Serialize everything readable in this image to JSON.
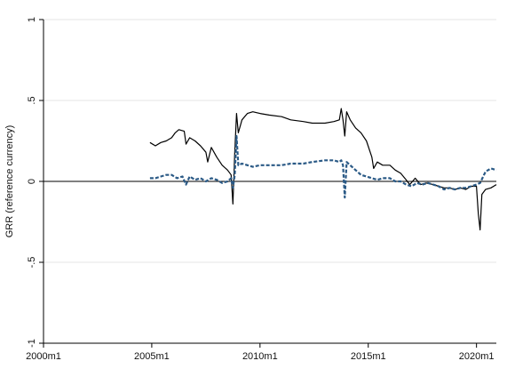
{
  "chart_data": {
    "type": "line",
    "title": "",
    "xlabel": "",
    "ylabel": "GRR (reference currency)",
    "xlim": [
      "2000m1",
      "2020m12"
    ],
    "ylim": [
      -1,
      1
    ],
    "grid": true,
    "legend": "none",
    "x_ticks": [
      "2000m1",
      "2005m1",
      "2010m1",
      "2015m1",
      "2020m1"
    ],
    "y_ticks": [
      {
        "value": 1,
        "label": "1"
      },
      {
        "value": 0.5,
        "label": ".5"
      },
      {
        "value": 0,
        "label": "0"
      },
      {
        "value": -0.5,
        "label": "-.5"
      },
      {
        "value": -1,
        "label": "-1"
      }
    ],
    "reference_line": 0,
    "series": [
      {
        "style": "solid",
        "color": "#000000",
        "points": [
          [
            "2004m12",
            0.24
          ],
          [
            "2005m3",
            0.22
          ],
          [
            "2005m6",
            0.24
          ],
          [
            "2005m9",
            0.25
          ],
          [
            "2005m12",
            0.27
          ],
          [
            "2006m2",
            0.3
          ],
          [
            "2006m4",
            0.32
          ],
          [
            "2006m7",
            0.31
          ],
          [
            "2006m8",
            0.23
          ],
          [
            "2006m10",
            0.27
          ],
          [
            "2007m1",
            0.25
          ],
          [
            "2007m4",
            0.22
          ],
          [
            "2007m7",
            0.18
          ],
          [
            "2007m8",
            0.12
          ],
          [
            "2007m10",
            0.21
          ],
          [
            "2008m1",
            0.15
          ],
          [
            "2008m4",
            0.1
          ],
          [
            "2008m7",
            0.07
          ],
          [
            "2008m9",
            0.04
          ],
          [
            "2008m10",
            -0.14
          ],
          [
            "2008m11",
            0.18
          ],
          [
            "2008m12",
            0.42
          ],
          [
            "2009m1",
            0.3
          ],
          [
            "2009m3",
            0.38
          ],
          [
            "2009m6",
            0.42
          ],
          [
            "2009m9",
            0.43
          ],
          [
            "2010m1",
            0.42
          ],
          [
            "2010m6",
            0.41
          ],
          [
            "2011m1",
            0.4
          ],
          [
            "2011m6",
            0.38
          ],
          [
            "2012m1",
            0.37
          ],
          [
            "2012m6",
            0.36
          ],
          [
            "2013m1",
            0.36
          ],
          [
            "2013m6",
            0.37
          ],
          [
            "2013m9",
            0.38
          ],
          [
            "2013m10",
            0.45
          ],
          [
            "2013m11",
            0.38
          ],
          [
            "2013m12",
            0.28
          ],
          [
            "2014m1",
            0.43
          ],
          [
            "2014m3",
            0.38
          ],
          [
            "2014m6",
            0.33
          ],
          [
            "2014m9",
            0.3
          ],
          [
            "2014m12",
            0.25
          ],
          [
            "2015m3",
            0.15
          ],
          [
            "2015m4",
            0.08
          ],
          [
            "2015m6",
            0.12
          ],
          [
            "2015m9",
            0.1
          ],
          [
            "2016m1",
            0.1
          ],
          [
            "2016m4",
            0.07
          ],
          [
            "2016m7",
            0.05
          ],
          [
            "2016m10",
            0.01
          ],
          [
            "2016m12",
            -0.02
          ],
          [
            "2017m3",
            0.02
          ],
          [
            "2017m6",
            -0.02
          ],
          [
            "2017m9",
            -0.01
          ],
          [
            "2018m1",
            -0.02
          ],
          [
            "2018m4",
            -0.03
          ],
          [
            "2018m7",
            -0.04
          ],
          [
            "2018m10",
            -0.04
          ],
          [
            "2019m1",
            -0.05
          ],
          [
            "2019m4",
            -0.04
          ],
          [
            "2019m7",
            -0.05
          ],
          [
            "2019m10",
            -0.03
          ],
          [
            "2020m1",
            -0.03
          ],
          [
            "2020m2",
            -0.2
          ],
          [
            "2020m3",
            -0.3
          ],
          [
            "2020m4",
            -0.08
          ],
          [
            "2020m6",
            -0.05
          ],
          [
            "2020m9",
            -0.04
          ],
          [
            "2020m12",
            -0.02
          ]
        ]
      },
      {
        "style": "dash",
        "color": "#2b5a86",
        "points": [
          [
            "2004m12",
            0.02
          ],
          [
            "2005m3",
            0.02
          ],
          [
            "2005m6",
            0.03
          ],
          [
            "2005m9",
            0.04
          ],
          [
            "2005m12",
            0.04
          ],
          [
            "2006m3",
            0.02
          ],
          [
            "2006m6",
            0.03
          ],
          [
            "2006m8",
            -0.02
          ],
          [
            "2006m10",
            0.03
          ],
          [
            "2007m1",
            0.01
          ],
          [
            "2007m4",
            0.02
          ],
          [
            "2007m7",
            0.0
          ],
          [
            "2007m10",
            0.02
          ],
          [
            "2008m1",
            0.01
          ],
          [
            "2008m4",
            -0.01
          ],
          [
            "2008m7",
            0.0
          ],
          [
            "2008m9",
            0.02
          ],
          [
            "2008m10",
            -0.04
          ],
          [
            "2008m11",
            0.04
          ],
          [
            "2008m12",
            0.28
          ],
          [
            "2009m1",
            0.1
          ],
          [
            "2009m3",
            0.11
          ],
          [
            "2009m6",
            0.1
          ],
          [
            "2009m9",
            0.09
          ],
          [
            "2010m1",
            0.1
          ],
          [
            "2010m6",
            0.1
          ],
          [
            "2011m1",
            0.1
          ],
          [
            "2011m6",
            0.11
          ],
          [
            "2012m1",
            0.11
          ],
          [
            "2012m6",
            0.12
          ],
          [
            "2013m1",
            0.13
          ],
          [
            "2013m6",
            0.13
          ],
          [
            "2013m9",
            0.12
          ],
          [
            "2013m10",
            0.13
          ],
          [
            "2013m11",
            0.1
          ],
          [
            "2013m12",
            -0.1
          ],
          [
            "2014m1",
            0.12
          ],
          [
            "2014m3",
            0.1
          ],
          [
            "2014m6",
            0.07
          ],
          [
            "2014m9",
            0.04
          ],
          [
            "2014m12",
            0.03
          ],
          [
            "2015m3",
            0.02
          ],
          [
            "2015m6",
            0.01
          ],
          [
            "2015m9",
            0.02
          ],
          [
            "2016m1",
            0.02
          ],
          [
            "2016m4",
            0.0
          ],
          [
            "2016m7",
            0.0
          ],
          [
            "2016m10",
            -0.02
          ],
          [
            "2017m1",
            -0.03
          ],
          [
            "2017m4",
            -0.01
          ],
          [
            "2017m7",
            -0.02
          ],
          [
            "2017m10",
            -0.01
          ],
          [
            "2018m1",
            -0.02
          ],
          [
            "2018m4",
            -0.03
          ],
          [
            "2018m7",
            -0.05
          ],
          [
            "2018m10",
            -0.04
          ],
          [
            "2019m1",
            -0.05
          ],
          [
            "2019m4",
            -0.04
          ],
          [
            "2019m7",
            -0.04
          ],
          [
            "2019m10",
            -0.03
          ],
          [
            "2020m1",
            -0.02
          ],
          [
            "2020m3",
            -0.01
          ],
          [
            "2020m6",
            0.06
          ],
          [
            "2020m9",
            0.08
          ],
          [
            "2020m12",
            0.07
          ]
        ]
      }
    ]
  }
}
